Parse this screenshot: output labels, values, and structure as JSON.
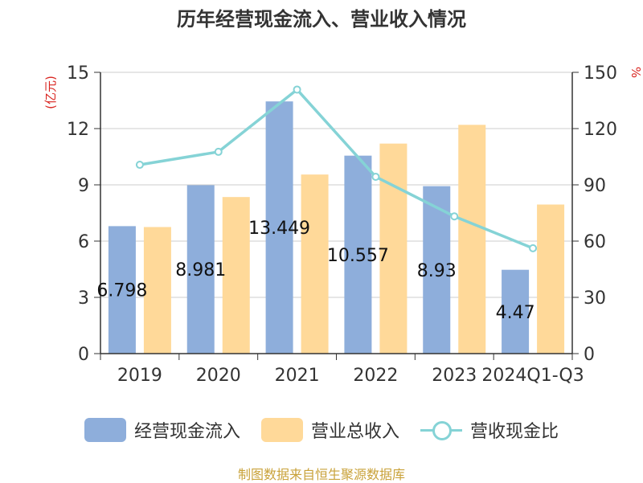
{
  "chart_data": {
    "type": "bar",
    "title": "历年经营现金流入、营业收入情况",
    "categories": [
      "2019",
      "2020",
      "2021",
      "2022",
      "2023",
      "2024Q1-Q3"
    ],
    "series": [
      {
        "name": "经营现金流入",
        "kind": "bar",
        "axis": "left",
        "color": "#8eaedb",
        "values": [
          6.798,
          8.981,
          13.449,
          10.557,
          8.93,
          4.47
        ]
      },
      {
        "name": "营业总收入",
        "kind": "bar",
        "axis": "left",
        "color": "#ffd999",
        "values": [
          6.75,
          8.35,
          9.55,
          11.2,
          12.2,
          7.95
        ]
      },
      {
        "name": "营收现金比",
        "kind": "line",
        "axis": "right",
        "color": "#85d3d6",
        "values": [
          100.7,
          107.6,
          140.8,
          94.3,
          73.2,
          56.2
        ]
      }
    ],
    "data_labels": [
      "6.798",
      "8.981",
      "13.449",
      "10.557",
      "8.93",
      "4.47"
    ],
    "ylabel_left": "(亿元)",
    "ylabel_right": "%",
    "ylim_left": [
      0,
      15
    ],
    "yticks_left": [
      "0",
      "3",
      "6",
      "9",
      "12",
      "15"
    ],
    "ylim_right": [
      0,
      150
    ],
    "yticks_right": [
      "0",
      "30",
      "60",
      "90",
      "120",
      "150"
    ],
    "grid": true,
    "legend_position": "bottom"
  },
  "source": "制图数据来自恒生聚源数据库"
}
